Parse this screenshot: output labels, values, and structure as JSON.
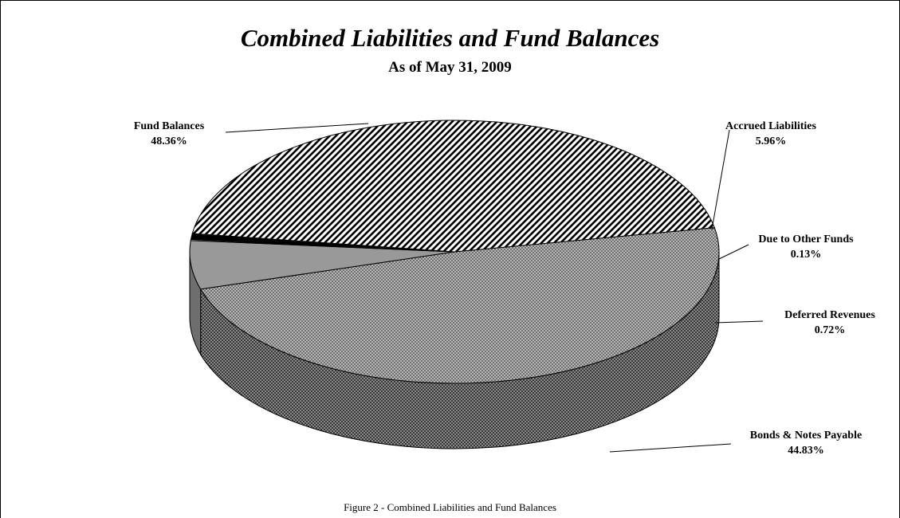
{
  "chart_data": {
    "type": "pie",
    "title": "Combined Liabilities and Fund Balances",
    "subtitle": "As of May 31, 2009",
    "caption": "Figure 2 - Combined Liabilities and Fund Balances",
    "three_d": true,
    "slices": [
      {
        "label": "Fund Balances",
        "value_label": "48.36%",
        "value": 48.36,
        "pattern": "dots"
      },
      {
        "label": "Accrued Liabilities",
        "value_label": "5.96%",
        "value": 5.96,
        "pattern": "gray"
      },
      {
        "label": "Due to Other Funds",
        "value_label": "0.13%",
        "value": 0.13,
        "pattern": "white"
      },
      {
        "label": "Deferred Revenues",
        "value_label": "0.72%",
        "value": 0.72,
        "pattern": "black"
      },
      {
        "label": "Bonds & Notes Payable",
        "value_label": "44.83%",
        "value": 44.83,
        "pattern": "stripes"
      }
    ]
  }
}
